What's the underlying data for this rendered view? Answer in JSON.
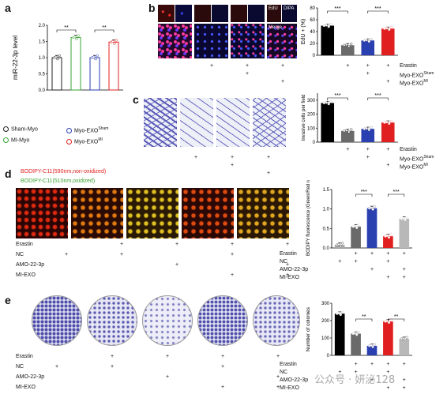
{
  "panels": {
    "a": {
      "label": "a",
      "ylabel": "miR-22-3p level",
      "ticks": [
        "0.0",
        "0.5",
        "1.0",
        "1.5",
        "2.0"
      ],
      "sig": [
        "**",
        "**"
      ],
      "legend": [
        {
          "label": "Sham-Myo",
          "color": "#222222"
        },
        {
          "label": "MI-Myo",
          "color": "#3aa335"
        },
        {
          "label": "Myo-EXO",
          "sup": "Sham",
          "color": "#2a3fb0"
        },
        {
          "label": "Myo-EXO",
          "sup": "MI",
          "color": "#e02020"
        }
      ]
    },
    "b": {
      "label": "b",
      "img_labels": [
        "EdU",
        "DIPA",
        "Merge"
      ],
      "ylabel": "EdU + (%)",
      "ticks": [
        "0",
        "20",
        "40",
        "60",
        "80"
      ],
      "sig": [
        "***",
        "***"
      ],
      "conditions": [
        {
          "label": "Erastin",
          "marks": [
            "",
            "+",
            "+",
            "+"
          ]
        },
        {
          "label": "Myo-EXO",
          "sup": "Sham",
          "marks": [
            "",
            "",
            "+",
            ""
          ]
        },
        {
          "label": "Myo-EXO",
          "sup": "MI",
          "marks": [
            "",
            "",
            "",
            "+"
          ]
        }
      ],
      "img_marks": [
        {
          "col": [
            "",
            "+",
            "+",
            "+"
          ]
        },
        {
          "col": [
            "",
            "",
            "+",
            ""
          ]
        },
        {
          "col": [
            "",
            "",
            "",
            "+"
          ]
        }
      ]
    },
    "c": {
      "label": "c",
      "ylabel": "Invasive cells per field",
      "ticks": [
        "0",
        "100",
        "200",
        "300"
      ],
      "sig": [
        "***",
        "***"
      ],
      "conditions": [
        {
          "label": "Erastin",
          "marks": [
            "",
            "+",
            "+",
            "+"
          ]
        },
        {
          "label": "Myo-EXO",
          "sup": "Sham",
          "marks": [
            "",
            "",
            "+",
            ""
          ]
        },
        {
          "label": "Myo-EXO",
          "sup": "MI",
          "marks": [
            "",
            "",
            "",
            "+"
          ]
        }
      ]
    },
    "d": {
      "label": "d",
      "title_red": "BODIPY-C11(590nm,non-oxidized)",
      "title_green": "BODIPY-C11(510nm,oxidized)",
      "ylabel": "C11-BODIPY fluorescence (Green/Red ratio)",
      "ticks": [
        "0.0",
        "0.5",
        "1.0",
        "1.5"
      ],
      "sig": [
        "***",
        "***"
      ],
      "conditions": [
        {
          "label": "Erastin",
          "marks": [
            "",
            "+",
            "+",
            "+",
            "+"
          ]
        },
        {
          "label": "NC",
          "marks": [
            "+",
            "+",
            "",
            "+",
            ""
          ]
        },
        {
          "label": "AMO-22-3p",
          "marks": [
            "",
            "",
            "+",
            "",
            "+"
          ]
        },
        {
          "label": "MI-EXO",
          "marks": [
            "",
            "",
            "",
            "+",
            "+"
          ]
        }
      ]
    },
    "e": {
      "label": "e",
      "ylabel": "Number of colonies",
      "ticks": [
        "0",
        "100",
        "200",
        "300"
      ],
      "sig": [
        "**",
        "**"
      ],
      "conditions": [
        {
          "label": "Erastin",
          "marks": [
            "",
            "+",
            "+",
            "+",
            "+"
          ]
        },
        {
          "label": "NC",
          "marks": [
            "+",
            "+",
            "",
            "+",
            ""
          ]
        },
        {
          "label": "AMO-22-3p",
          "marks": [
            "",
            "",
            "+",
            "",
            "+"
          ]
        },
        {
          "label": "MI-EXO",
          "marks": [
            "",
            "",
            "",
            "+",
            "+"
          ]
        }
      ]
    }
  },
  "watermark": "公众号 · 妍泌128",
  "chart_data": [
    {
      "type": "bar",
      "panel": "a",
      "categories": [
        "Sham-Myo",
        "MI-Myo",
        "Myo-EXO Sham",
        "Myo-EXO MI"
      ],
      "values": [
        1.0,
        1.62,
        1.0,
        1.48
      ],
      "ylabel": "miR-22-3p level",
      "ylim": [
        0,
        2.0
      ]
    },
    {
      "type": "bar",
      "panel": "b",
      "categories": [
        "Control",
        "Erastin",
        "Erastin+Myo-EXO Sham",
        "Erastin+Myo-EXO MI"
      ],
      "values": [
        50,
        17,
        25,
        45
      ],
      "ylabel": "EdU + (%)",
      "ylim": [
        0,
        80
      ]
    },
    {
      "type": "bar",
      "panel": "c",
      "categories": [
        "Control",
        "Erastin",
        "Erastin+Myo-EXO Sham",
        "Erastin+Myo-EXO MI"
      ],
      "values": [
        280,
        80,
        95,
        140
      ],
      "ylabel": "Invasive cells per field",
      "ylim": [
        0,
        350
      ]
    },
    {
      "type": "bar",
      "panel": "d",
      "categories": [
        "NC",
        "Erastin+NC",
        "Erastin+AMO-22-3p",
        "Erastin+NC+MI-EXO",
        "Erastin+AMO-22-3p+MI-EXO"
      ],
      "values": [
        0.08,
        0.55,
        1.02,
        0.3,
        0.75
      ],
      "ylabel": "C11-BODIPY fluorescence (Green/Red ratio)",
      "ylim": [
        0,
        1.5
      ]
    },
    {
      "type": "bar",
      "panel": "e",
      "categories": [
        "NC",
        "Erastin+NC",
        "Erastin+AMO-22-3p",
        "Erastin+NC+MI-EXO",
        "Erastin+AMO-22-3p+MI-EXO"
      ],
      "values": [
        240,
        125,
        55,
        195,
        95
      ],
      "ylabel": "Number of colonies",
      "ylim": [
        0,
        300
      ]
    }
  ]
}
